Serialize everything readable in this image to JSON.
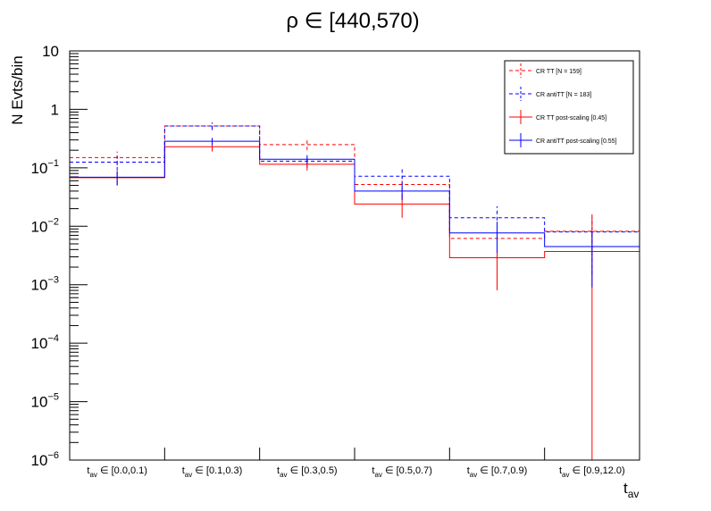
{
  "chart_data": {
    "type": "histogram",
    "title": "ρ ∈ [440,570)",
    "xlabel": "t",
    "xlabel_sub": "av",
    "ylabel": "N Evts/bin",
    "y_scale": "log",
    "ylim": [
      1e-06,
      10
    ],
    "y_ticks": [
      {
        "value": 1e-06,
        "base": "10",
        "exp": "−6"
      },
      {
        "value": 1e-05,
        "base": "10",
        "exp": "−5"
      },
      {
        "value": 0.0001,
        "base": "10",
        "exp": "−4"
      },
      {
        "value": 0.001,
        "base": "10",
        "exp": "−3"
      },
      {
        "value": 0.01,
        "base": "10",
        "exp": "−2"
      },
      {
        "value": 0.1,
        "base": "10",
        "exp": "−1"
      },
      {
        "value": 1,
        "base": "1",
        "exp": ""
      },
      {
        "value": 10,
        "base": "10",
        "exp": ""
      }
    ],
    "categories": [
      {
        "prefix": "t",
        "sub": "av",
        "range": "∈ [0.0,0.1)"
      },
      {
        "prefix": "t",
        "sub": "av",
        "range": "∈ [0.1,0.3)"
      },
      {
        "prefix": "t",
        "sub": "av",
        "range": "∈ [0.3,0.5)"
      },
      {
        "prefix": "t",
        "sub": "av",
        "range": "∈ [0.5,0.7)"
      },
      {
        "prefix": "t",
        "sub": "av",
        "range": "∈ [0.7,0.9)"
      },
      {
        "prefix": "t",
        "sub": "av",
        "range": "∈ [0.9,12.0)"
      }
    ],
    "series": [
      {
        "name": "CR TT [N = 159]",
        "color": "#ff0000",
        "dashed": true,
        "values": [
          0.15,
          0.52,
          0.25,
          0.052,
          0.0062,
          0.0082
        ],
        "err_low": [
          0.11,
          0.44,
          0.2,
          0.032,
          0.0012,
          0.0082
        ],
        "err_high": [
          0.19,
          0.6,
          0.3,
          0.072,
          0.011,
          0.0082
        ]
      },
      {
        "name": "CR antiTT [N = 183]",
        "color": "#0000ff",
        "dashed": true,
        "values": [
          0.125,
          0.52,
          0.13,
          0.072,
          0.014,
          0.008
        ],
        "err_low": [
          0.09,
          0.45,
          0.1,
          0.05,
          0.006,
          0.0015
        ],
        "err_high": [
          0.16,
          0.59,
          0.16,
          0.095,
          0.022,
          0.0145
        ]
      },
      {
        "name": "CR TT post-scaling [0.45]",
        "color": "#ff0000",
        "dashed": false,
        "values": [
          0.068,
          0.23,
          0.115,
          0.024,
          0.0029,
          0.0037
        ],
        "err_low": [
          0.05,
          0.19,
          0.09,
          0.014,
          0.0008,
          1e-06
        ],
        "err_high": [
          0.086,
          0.27,
          0.14,
          0.034,
          0.005,
          0.016
        ]
      },
      {
        "name": "CR antiTT post-scaling [0.55]",
        "color": "#0000ff",
        "dashed": false,
        "values": [
          0.069,
          0.285,
          0.14,
          0.04,
          0.0077,
          0.0045
        ],
        "err_low": [
          0.05,
          0.245,
          0.115,
          0.028,
          0.0035,
          0.0009
        ],
        "err_high": [
          0.088,
          0.325,
          0.165,
          0.052,
          0.012,
          0.0081
        ]
      }
    ],
    "legend_placement": "top-right",
    "grid": false
  }
}
